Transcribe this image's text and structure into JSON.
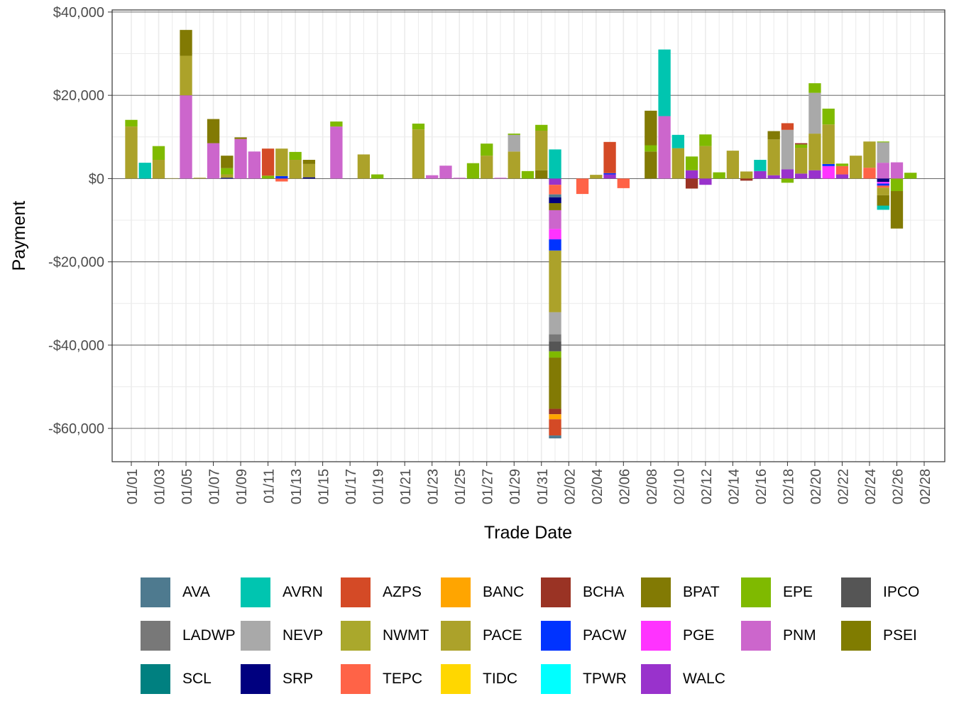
{
  "colors": {
    "AVA": "#4e7a8f",
    "AVRN": "#00c5b0",
    "AZPS": "#d44a26",
    "BANC": "#ffa500",
    "BCHA": "#9a3324",
    "BPAT": "#827a04",
    "EPE": "#7fba00",
    "IPCO": "#555555",
    "LADWP": "#787878",
    "NEVP": "#a9a9a9",
    "NWMT": "#aaa82c",
    "PACE": "#aca22a",
    "PACW": "#0033ff",
    "PGE": "#ff33ff",
    "PNM": "#cc66cc",
    "PSEI": "#807c00",
    "SCL": "#008080",
    "SRP": "#00007f",
    "TEPC": "#ff6347",
    "TIDC": "#ffd700",
    "TPWR": "#00ffff",
    "WALC": "#9932cc"
  },
  "chart_data": {
    "type": "bar",
    "stacked": true,
    "title": "",
    "xlabel": "Trade Date",
    "ylabel": "Payment",
    "ylim": [
      -68000,
      40500
    ],
    "y_ticks": [
      40000,
      20000,
      0,
      -20000,
      -40000,
      -60000
    ],
    "y_tick_labels": [
      "$40,000",
      "$20,000",
      "$0",
      "-$20,000",
      "-$40,000",
      "-$60,000"
    ],
    "x_tick_labels": [
      "01/01",
      "01/03",
      "01/05",
      "01/07",
      "01/09",
      "01/11",
      "01/13",
      "01/15",
      "01/17",
      "01/19",
      "01/21",
      "01/23",
      "01/25",
      "01/27",
      "01/29",
      "01/31",
      "02/02",
      "02/04",
      "02/06",
      "02/08",
      "02/10",
      "02/12",
      "02/14",
      "02/16",
      "02/18",
      "02/20",
      "02/22",
      "02/24",
      "02/26",
      "02/28"
    ],
    "series_names": [
      "AVA",
      "AVRN",
      "AZPS",
      "BANC",
      "BCHA",
      "BPAT",
      "EPE",
      "IPCO",
      "LADWP",
      "NEVP",
      "NWMT",
      "PACE",
      "PACW",
      "PGE",
      "PNM",
      "PSEI",
      "SCL",
      "SRP",
      "TEPC",
      "TIDC",
      "TPWR",
      "WALC"
    ],
    "bars": [
      {
        "date": "01/01",
        "segments": [
          [
            "PACE",
            12500
          ],
          [
            "EPE",
            1600
          ]
        ]
      },
      {
        "date": "01/02",
        "segments": [
          [
            "AVRN",
            3800
          ]
        ]
      },
      {
        "date": "01/03",
        "segments": [
          [
            "PACE",
            4500
          ],
          [
            "EPE",
            3300
          ]
        ]
      },
      {
        "date": "01/04",
        "segments": [
          [
            "PACE",
            100
          ]
        ]
      },
      {
        "date": "01/05",
        "segments": [
          [
            "PNM",
            20000
          ],
          [
            "PACE",
            9500
          ],
          [
            "BPAT",
            6200
          ]
        ]
      },
      {
        "date": "01/06",
        "segments": [
          [
            "PACE",
            200
          ]
        ]
      },
      {
        "date": "01/07",
        "segments": [
          [
            "PNM",
            8500
          ],
          [
            "BPAT",
            5800
          ]
        ]
      },
      {
        "date": "01/08",
        "segments": [
          [
            "SRP",
            200
          ],
          [
            "PACE",
            800
          ],
          [
            "EPE",
            1500
          ],
          [
            "BPAT",
            3000
          ]
        ]
      },
      {
        "date": "01/09",
        "segments": [
          [
            "PNM",
            9500
          ],
          [
            "BPAT",
            400
          ]
        ]
      },
      {
        "date": "01/10",
        "segments": [
          [
            "PNM",
            6500
          ]
        ]
      },
      {
        "date": "01/11",
        "segments": [
          [
            "EPE",
            700
          ],
          [
            "AZPS",
            6500
          ]
        ]
      },
      {
        "date": "01/12",
        "segments": [
          [
            "PACW",
            600
          ],
          [
            "PACE",
            6600
          ],
          [
            "TEPC",
            -700
          ]
        ]
      },
      {
        "date": "01/13",
        "segments": [
          [
            "PACE",
            4500
          ],
          [
            "EPE",
            1900
          ]
        ]
      },
      {
        "date": "01/14",
        "segments": [
          [
            "SRP",
            300
          ],
          [
            "PACE",
            3200
          ],
          [
            "BPAT",
            1000
          ]
        ]
      },
      {
        "date": "01/16",
        "segments": [
          [
            "PNM",
            12500
          ],
          [
            "EPE",
            1200
          ]
        ]
      },
      {
        "date": "01/18",
        "segments": [
          [
            "PACE",
            5800
          ]
        ]
      },
      {
        "date": "01/19",
        "segments": [
          [
            "EPE",
            1000
          ]
        ]
      },
      {
        "date": "01/22",
        "segments": [
          [
            "PACE",
            11800
          ],
          [
            "EPE",
            1400
          ]
        ]
      },
      {
        "date": "01/23",
        "segments": [
          [
            "PNM",
            800
          ]
        ]
      },
      {
        "date": "01/24",
        "segments": [
          [
            "PNM",
            3100
          ]
        ]
      },
      {
        "date": "01/25",
        "segments": [
          [
            "PNM",
            200
          ]
        ]
      },
      {
        "date": "01/26",
        "segments": [
          [
            "EPE",
            3700
          ]
        ]
      },
      {
        "date": "01/27",
        "segments": [
          [
            "PACE",
            5500
          ],
          [
            "EPE",
            2900
          ]
        ]
      },
      {
        "date": "01/28",
        "segments": [
          [
            "PNM",
            200
          ]
        ]
      },
      {
        "date": "01/29",
        "segments": [
          [
            "PACE",
            6500
          ],
          [
            "NEVP",
            4000
          ],
          [
            "EPE",
            300
          ]
        ]
      },
      {
        "date": "01/30",
        "segments": [
          [
            "EPE",
            1800
          ]
        ]
      },
      {
        "date": "01/31",
        "segments": [
          [
            "BPAT",
            2000
          ],
          [
            "PACE",
            9500
          ],
          [
            "EPE",
            1400
          ]
        ]
      },
      {
        "date": "02/01",
        "segments": [
          [
            "AVRN",
            7000
          ],
          [
            "WALC",
            -1500
          ],
          [
            "TEPC",
            -2300
          ],
          [
            "AVA",
            -700
          ],
          [
            "SRP",
            -1400
          ],
          [
            "BPAT",
            -1700
          ],
          [
            "PNM",
            -4500
          ],
          [
            "PGE",
            -2500
          ],
          [
            "PACW",
            -2700
          ],
          [
            "PACE",
            -14800
          ],
          [
            "NEVP",
            -5300
          ],
          [
            "LADWP",
            -1700
          ],
          [
            "IPCO",
            -2400
          ],
          [
            "EPE",
            -1500
          ],
          [
            "BPAT",
            -12300
          ],
          [
            "BCHA",
            -1300
          ],
          [
            "BANC",
            -1200
          ],
          [
            "AZPS",
            -3900
          ],
          [
            "AVA",
            -700
          ]
        ]
      },
      {
        "date": "02/03",
        "segments": [
          [
            "TEPC",
            -3700
          ]
        ]
      },
      {
        "date": "02/04",
        "segments": [
          [
            "PACE",
            900
          ]
        ]
      },
      {
        "date": "02/05",
        "segments": [
          [
            "WALC",
            1000
          ],
          [
            "PACW",
            300
          ],
          [
            "AZPS",
            7500
          ]
        ]
      },
      {
        "date": "02/06",
        "segments": [
          [
            "TEPC",
            -2300
          ]
        ]
      },
      {
        "date": "02/08",
        "segments": [
          [
            "BPAT",
            6500
          ],
          [
            "EPE",
            1500
          ],
          [
            "BPAT",
            8300
          ]
        ]
      },
      {
        "date": "02/09",
        "segments": [
          [
            "PNM",
            15000
          ],
          [
            "AVRN",
            16000
          ]
        ]
      },
      {
        "date": "02/10",
        "segments": [
          [
            "PACE",
            7300
          ],
          [
            "AVRN",
            3200
          ]
        ]
      },
      {
        "date": "02/11",
        "segments": [
          [
            "WALC",
            2000
          ],
          [
            "EPE",
            3300
          ],
          [
            "BCHA",
            -2400
          ]
        ]
      },
      {
        "date": "02/12",
        "segments": [
          [
            "PACE",
            7800
          ],
          [
            "EPE",
            2800
          ],
          [
            "WALC",
            -1500
          ]
        ]
      },
      {
        "date": "02/13",
        "segments": [
          [
            "EPE",
            1500
          ]
        ]
      },
      {
        "date": "02/14",
        "segments": [
          [
            "PACE",
            6700
          ]
        ]
      },
      {
        "date": "02/15",
        "segments": [
          [
            "PACE",
            1700
          ],
          [
            "BCHA",
            -500
          ]
        ]
      },
      {
        "date": "02/16",
        "segments": [
          [
            "WALC",
            1800
          ],
          [
            "AVRN",
            2700
          ]
        ]
      },
      {
        "date": "02/17",
        "segments": [
          [
            "WALC",
            800
          ],
          [
            "PACE",
            8600
          ],
          [
            "BPAT",
            2000
          ]
        ]
      },
      {
        "date": "02/18",
        "segments": [
          [
            "WALC",
            2200
          ],
          [
            "NEVP",
            9500
          ],
          [
            "AZPS",
            1600
          ],
          [
            "EPE",
            -1000
          ]
        ]
      },
      {
        "date": "02/19",
        "segments": [
          [
            "WALC",
            1200
          ],
          [
            "PACE",
            6200
          ],
          [
            "EPE",
            800
          ],
          [
            "BCHA",
            300
          ]
        ]
      },
      {
        "date": "02/20",
        "segments": [
          [
            "WALC",
            2000
          ],
          [
            "PACE",
            8800
          ],
          [
            "NEVP",
            9800
          ],
          [
            "EPE",
            2300
          ]
        ]
      },
      {
        "date": "02/21",
        "segments": [
          [
            "PGE",
            3000
          ],
          [
            "PACW",
            500
          ],
          [
            "PACE",
            9500
          ],
          [
            "EPE",
            3800
          ]
        ]
      },
      {
        "date": "02/22",
        "segments": [
          [
            "WALC",
            1000
          ],
          [
            "TEPC",
            2000
          ],
          [
            "EPE",
            600
          ]
        ]
      },
      {
        "date": "02/23",
        "segments": [
          [
            "PACE",
            5500
          ]
        ]
      },
      {
        "date": "02/24",
        "segments": [
          [
            "TEPC",
            2600
          ],
          [
            "PACE",
            6300
          ]
        ]
      },
      {
        "date": "02/25",
        "segments": [
          [
            "PNM",
            3800
          ],
          [
            "NEVP",
            4900
          ],
          [
            "EPE",
            200
          ],
          [
            "SRP",
            -800
          ],
          [
            "PGE",
            -400
          ],
          [
            "PACW",
            -500
          ],
          [
            "TEPC",
            -500
          ],
          [
            "PACE",
            -1800
          ],
          [
            "BPAT",
            -2500
          ],
          [
            "AVRN",
            -1000
          ]
        ]
      },
      {
        "date": "02/26",
        "segments": [
          [
            "PNM",
            3900
          ],
          [
            "EPE",
            -3000
          ],
          [
            "BPAT",
            -9000
          ]
        ]
      },
      {
        "date": "02/27",
        "segments": [
          [
            "EPE",
            1400
          ]
        ]
      }
    ]
  }
}
